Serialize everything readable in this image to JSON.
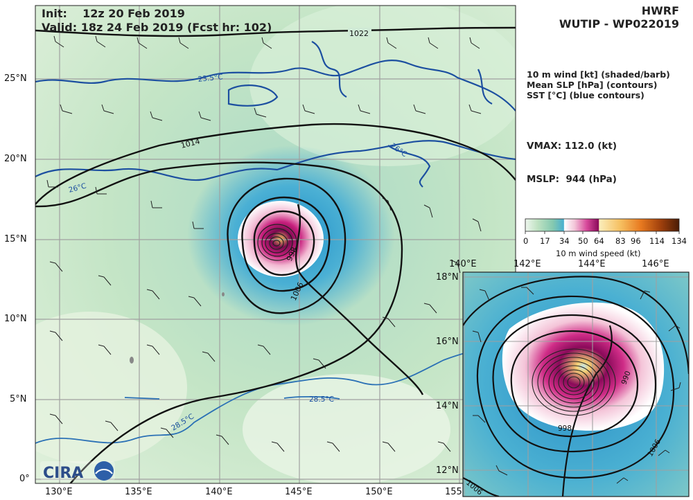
{
  "header": {
    "init": "Init:    12z 20 Feb 2019",
    "valid": "Valid: 18z 24 Feb 2019 (Fcst hr: 102)",
    "model": "HWRF",
    "storm": "WUTIP - WP022019"
  },
  "legend": {
    "line1": "10 m wind [kt] (shaded/barb)",
    "line2": "Mean SLP [hPa] (contours)",
    "line3": "SST [°C] (blue contours)"
  },
  "stats": {
    "vmax": "VMAX: 112.0 (kt)",
    "mslp": "MSLP:  944 (hPa)"
  },
  "colorbar": {
    "ticks": [
      "0",
      "17",
      "34",
      "50",
      "64",
      "83",
      "96",
      "114",
      "134"
    ],
    "label": "10 m wind speed (kt)",
    "colors": [
      "#eef6ee",
      "#bfe2c2",
      "#84c8b0",
      "#4ab0cf",
      "#ffffff",
      "#f3c6d9",
      "#d7489a",
      "#8a0a5a",
      "#f6dc85",
      "#f0a040",
      "#c85a10",
      "#6a2a08"
    ]
  },
  "main_map": {
    "lon_ticks": [
      "130°E",
      "135°E",
      "140°E",
      "145°E",
      "150°E",
      "155"
    ],
    "lat_ticks": [
      "25°N",
      "20°N",
      "15°N",
      "10°N",
      "5°N",
      "0°"
    ],
    "slp_labels": [
      "1022",
      "1014",
      "1006",
      "998"
    ],
    "sst_labels": [
      "23.5°C",
      "26°C",
      "26°C",
      "28.5°C",
      "28.5°C"
    ],
    "logo": "CIRA"
  },
  "inset_map": {
    "lon_ticks": [
      "140°E",
      "142°E",
      "144°E",
      "146°E"
    ],
    "lat_ticks": [
      "18°N",
      "16°N",
      "14°N",
      "12°N"
    ],
    "slp_labels": [
      "998",
      "1006",
      "1006",
      "990"
    ]
  }
}
